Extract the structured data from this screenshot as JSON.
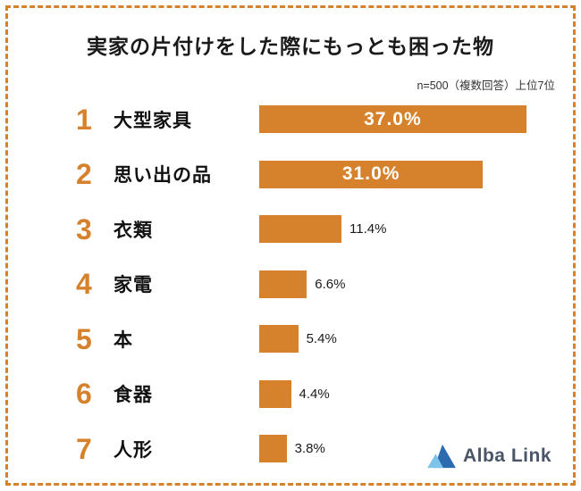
{
  "title": "実家の片付けをした際にもっとも困った物",
  "subtitle": "n=500（複数回答）上位7位",
  "logo": {
    "text": "Alba Link",
    "icon": "albalink-triangle-logo"
  },
  "colors": {
    "bar": "#D6822C",
    "rank_number": "#D6822C",
    "dashed_border": "#D6822C",
    "logo_dark_blue": "#2B6CB0",
    "logo_light_blue": "#7CC4EA",
    "logo_text": "#4A5568"
  },
  "chart_data": {
    "type": "bar",
    "orientation": "horizontal",
    "title": "実家の片付けをした際にもっとも困った物",
    "subtitle": "n=500（複数回答）上位7位",
    "ranks": [
      1,
      2,
      3,
      4,
      5,
      6,
      7
    ],
    "categories": [
      "大型家具",
      "思い出の品",
      "衣類",
      "家電",
      "本",
      "食器",
      "人形"
    ],
    "values": [
      37.0,
      31.0,
      11.4,
      6.6,
      5.4,
      4.4,
      3.8
    ],
    "value_labels": [
      "37.0%",
      "31.0%",
      "11.4%",
      "6.6%",
      "5.4%",
      "4.4%",
      "3.8%"
    ],
    "xlim": [
      0,
      40
    ],
    "value_label_inside_if_gte": 20,
    "grid": false,
    "legend": false
  }
}
